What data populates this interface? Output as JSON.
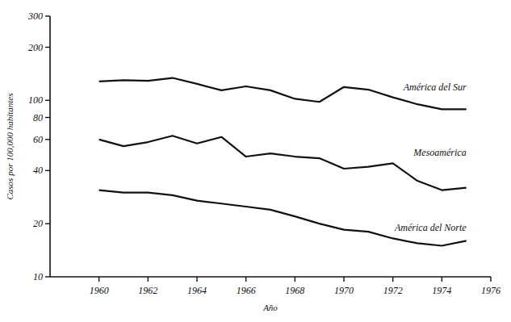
{
  "chart_data": {
    "type": "line",
    "x_label": "Año",
    "y_label": "Casos por 100,000 habitantes",
    "x": [
      1960,
      1961,
      1962,
      1963,
      1964,
      1965,
      1966,
      1967,
      1968,
      1969,
      1970,
      1971,
      1972,
      1973,
      1974,
      1975
    ],
    "series": [
      {
        "name": "América del Sur",
        "color": "#111111",
        "values": [
          128,
          130,
          129,
          134,
          124,
          114,
          120,
          114,
          102,
          98,
          119,
          115,
          104,
          95,
          89,
          89
        ]
      },
      {
        "name": "Mesoamérica",
        "color": "#111111",
        "values": [
          60,
          55,
          58,
          63,
          57,
          62,
          48,
          50,
          48,
          47,
          41,
          42,
          44,
          35,
          31,
          32
        ]
      },
      {
        "name": "América del Norte",
        "color": "#111111",
        "values": [
          31,
          30,
          30,
          29,
          27,
          26,
          25,
          24,
          22,
          20,
          18.5,
          18,
          16.5,
          15.5,
          15,
          16
        ]
      }
    ],
    "log": "y",
    "xlim": [
      1958,
      1976
    ],
    "xticks": [
      1960,
      1962,
      1964,
      1966,
      1968,
      1970,
      1972,
      1974,
      1976
    ],
    "ylim": [
      10,
      300
    ],
    "yticks": [
      10,
      20,
      40,
      60,
      80,
      100,
      200,
      300
    ],
    "grid": false
  }
}
